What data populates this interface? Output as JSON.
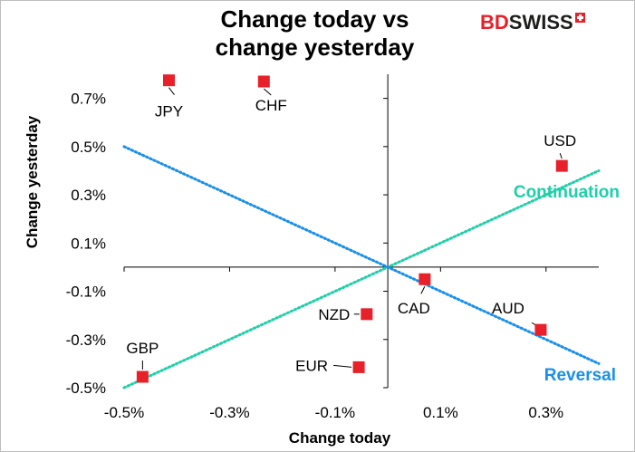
{
  "title": "Change today vs\nchange yesterday",
  "logo": {
    "part1": "BD",
    "part2": "SWISS"
  },
  "chart_data": {
    "type": "scatter",
    "title": "Change today vs change yesterday",
    "xlabel": "Change today",
    "ylabel": "Change yesterday",
    "xlim": [
      -0.5,
      0.4
    ],
    "ylim": [
      -0.5,
      0.8
    ],
    "x_ticks": [
      -0.5,
      -0.3,
      -0.1,
      0.1,
      0.3
    ],
    "x_tick_labels": [
      "-0.5%",
      "-0.3%",
      "-0.1%",
      "0.1%",
      "0.3%"
    ],
    "y_ticks": [
      0.7,
      0.5,
      0.3,
      0.1,
      -0.1,
      -0.3,
      -0.5
    ],
    "y_tick_labels": [
      "0.7%",
      "0.5%",
      "0.3%",
      "0.1%",
      "-0.1%",
      "-0.3%",
      "-0.5%"
    ],
    "marker_color": "#e8202a",
    "points": [
      {
        "label": "JPY",
        "x": -0.415,
        "y": 0.775
      },
      {
        "label": "CHF",
        "x": -0.235,
        "y": 0.77
      },
      {
        "label": "USD",
        "x": 0.33,
        "y": 0.42
      },
      {
        "label": "CAD",
        "x": 0.07,
        "y": -0.05
      },
      {
        "label": "AUD",
        "x": 0.29,
        "y": -0.26
      },
      {
        "label": "NZD",
        "x": -0.04,
        "y": -0.195
      },
      {
        "label": "EUR",
        "x": -0.055,
        "y": -0.415
      },
      {
        "label": "GBP",
        "x": -0.465,
        "y": -0.455
      }
    ],
    "lines": [
      {
        "name": "Continuation",
        "color": "#1fcfa8",
        "from": [
          -0.5,
          -0.5
        ],
        "to": [
          0.4,
          0.4
        ]
      },
      {
        "name": "Reversal",
        "color": "#1a8fe8",
        "from": [
          -0.5,
          0.5
        ],
        "to": [
          0.4,
          -0.4
        ]
      }
    ]
  }
}
